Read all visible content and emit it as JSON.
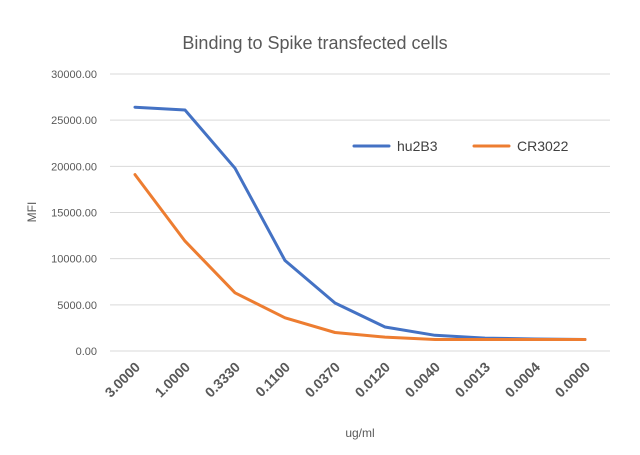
{
  "chart_data": {
    "type": "line",
    "title": "Binding to Spike transfected cells",
    "xlabel": "ug/ml",
    "ylabel": "MFI",
    "categories": [
      "3.0000",
      "1.0000",
      "0.3330",
      "0.1100",
      "0.0370",
      "0.0120",
      "0.0040",
      "0.0013",
      "0.0004",
      "0.0000"
    ],
    "yticks": [
      "0.00",
      "5000.00",
      "10000.00",
      "15000.00",
      "20000.00",
      "25000.00",
      "30000.00"
    ],
    "ylim": [
      0,
      30000
    ],
    "grid": true,
    "legend_position": "top-right",
    "series": [
      {
        "name": "hu2B3",
        "color": "#4472C4",
        "values": [
          26400,
          26100,
          19800,
          9800,
          5200,
          2600,
          1700,
          1400,
          1300,
          1250
        ]
      },
      {
        "name": "CR3022",
        "color": "#ED7D31",
        "values": [
          19100,
          11900,
          6300,
          3600,
          2000,
          1500,
          1250,
          1250,
          1250,
          1250
        ]
      }
    ]
  }
}
